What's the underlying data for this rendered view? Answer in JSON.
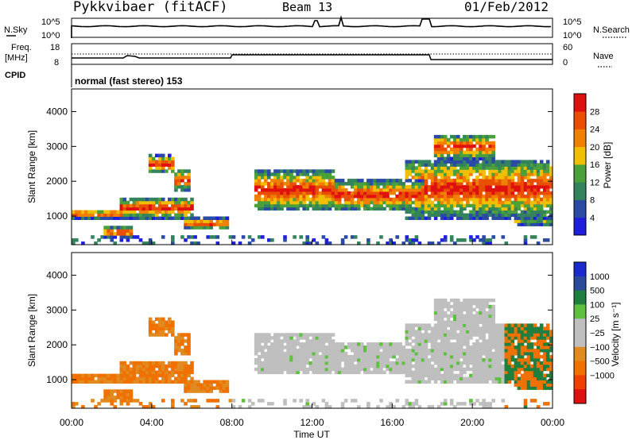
{
  "header": {
    "station": "Pykkvibaer (fitACF)",
    "beam": "Beam 13",
    "date": "01/Feb/2012"
  },
  "top_strip": {
    "left_label": "N.Sky",
    "right_label": "N.Search",
    "left_ticks": [
      "10^5",
      "10^0"
    ],
    "right_ticks": [
      "10^5",
      "10^0"
    ]
  },
  "freq_strip": {
    "left_label_1": "Freq.",
    "left_label_2": "[MHz]",
    "cpid_label": "CPID",
    "right_label": "Nave",
    "left_ticks": [
      "18",
      "8"
    ],
    "right_ticks": [
      "60",
      "0"
    ],
    "cpid_text": "normal (fast stereo) 153"
  },
  "colors": {
    "power_scale": [
      "#1e1edc",
      "#2a4aa6",
      "#33835c",
      "#4aa03a",
      "#f0c000",
      "#f08000",
      "#e85000",
      "#e01010"
    ],
    "velocity_scale": [
      "#1a2acc",
      "#2a4a9c",
      "#1f7f3f",
      "#5fc040",
      "#bfbfbf",
      "#bfbfbf",
      "#e08a20",
      "#f07000",
      "#f04000",
      "#e01010"
    ]
  },
  "chart_data": [
    {
      "type": "heatmap",
      "title": "",
      "ylabel": "Slant Range [km]",
      "xlabel": "",
      "ylim": [
        180,
        4650
      ],
      "xlim": [
        0,
        24
      ],
      "yticks": [
        "1000",
        "2000",
        "3000",
        "4000"
      ],
      "colorbar": {
        "label": "Power [dB]",
        "ticks": [
          "4",
          "8",
          "12",
          "16",
          "20",
          "24",
          "28"
        ],
        "range": [
          0,
          32
        ]
      }
    },
    {
      "type": "heatmap",
      "title": "",
      "ylabel": "Slant Range [km]",
      "xlabel": "Time UT",
      "ylim": [
        180,
        4650
      ],
      "xlim": [
        0,
        24
      ],
      "yticks": [
        "1000",
        "2000",
        "3000",
        "4000"
      ],
      "xticks": [
        "00:00",
        "04:00",
        "08:00",
        "12:00",
        "16:00",
        "20:00",
        "00:00"
      ],
      "colorbar": {
        "label": "Velocity [m s⁻¹]",
        "ticks": [
          "1000",
          "500",
          "100",
          "25",
          "−25",
          "−100",
          "−500",
          "−1000"
        ]
      }
    }
  ]
}
